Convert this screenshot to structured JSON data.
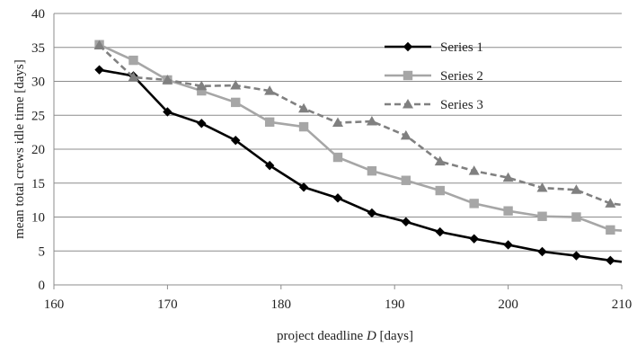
{
  "chart_data": {
    "type": "line",
    "title": "",
    "xlabel_prefix": "project deadline ",
    "xlabel_var": "D",
    "xlabel_suffix": " [days]",
    "ylabel": "mean total crews idle time [days]",
    "xlim": [
      160,
      210
    ],
    "ylim": [
      0,
      40
    ],
    "xticks": [
      160,
      170,
      180,
      190,
      200,
      210
    ],
    "yticks": [
      0,
      5,
      10,
      15,
      20,
      25,
      30,
      35,
      40
    ],
    "grid": true,
    "legend_position": "top-right",
    "x": [
      164,
      167,
      170,
      173,
      176,
      179,
      182,
      185,
      188,
      191,
      194,
      197,
      200,
      203,
      206,
      209
    ],
    "series": [
      {
        "name": "Series 1",
        "color": "#000000",
        "marker": "diamond",
        "dash": "solid",
        "values": [
          31.7,
          30.8,
          25.5,
          23.8,
          21.3,
          17.6,
          14.4,
          12.8,
          10.6,
          9.3,
          7.8,
          6.8,
          5.9,
          4.9,
          4.3,
          3.6
        ],
        "end_value": 3.4
      },
      {
        "name": "Series 2",
        "color": "#a6a6a6",
        "marker": "square",
        "dash": "solid",
        "values": [
          35.4,
          33.1,
          30.2,
          28.6,
          26.9,
          24.0,
          23.3,
          18.8,
          16.8,
          15.4,
          13.9,
          12.0,
          10.9,
          10.1,
          10.0,
          8.1
        ],
        "end_value": 8.0
      },
      {
        "name": "Series 3",
        "color": "#808080",
        "marker": "triangle",
        "dash": "dashed",
        "values": [
          35.3,
          30.6,
          30.2,
          29.3,
          29.4,
          28.6,
          26.0,
          23.9,
          24.1,
          22.0,
          18.2,
          16.8,
          15.8,
          14.3,
          14.0,
          12.0
        ],
        "end_value": 11.8
      }
    ]
  }
}
